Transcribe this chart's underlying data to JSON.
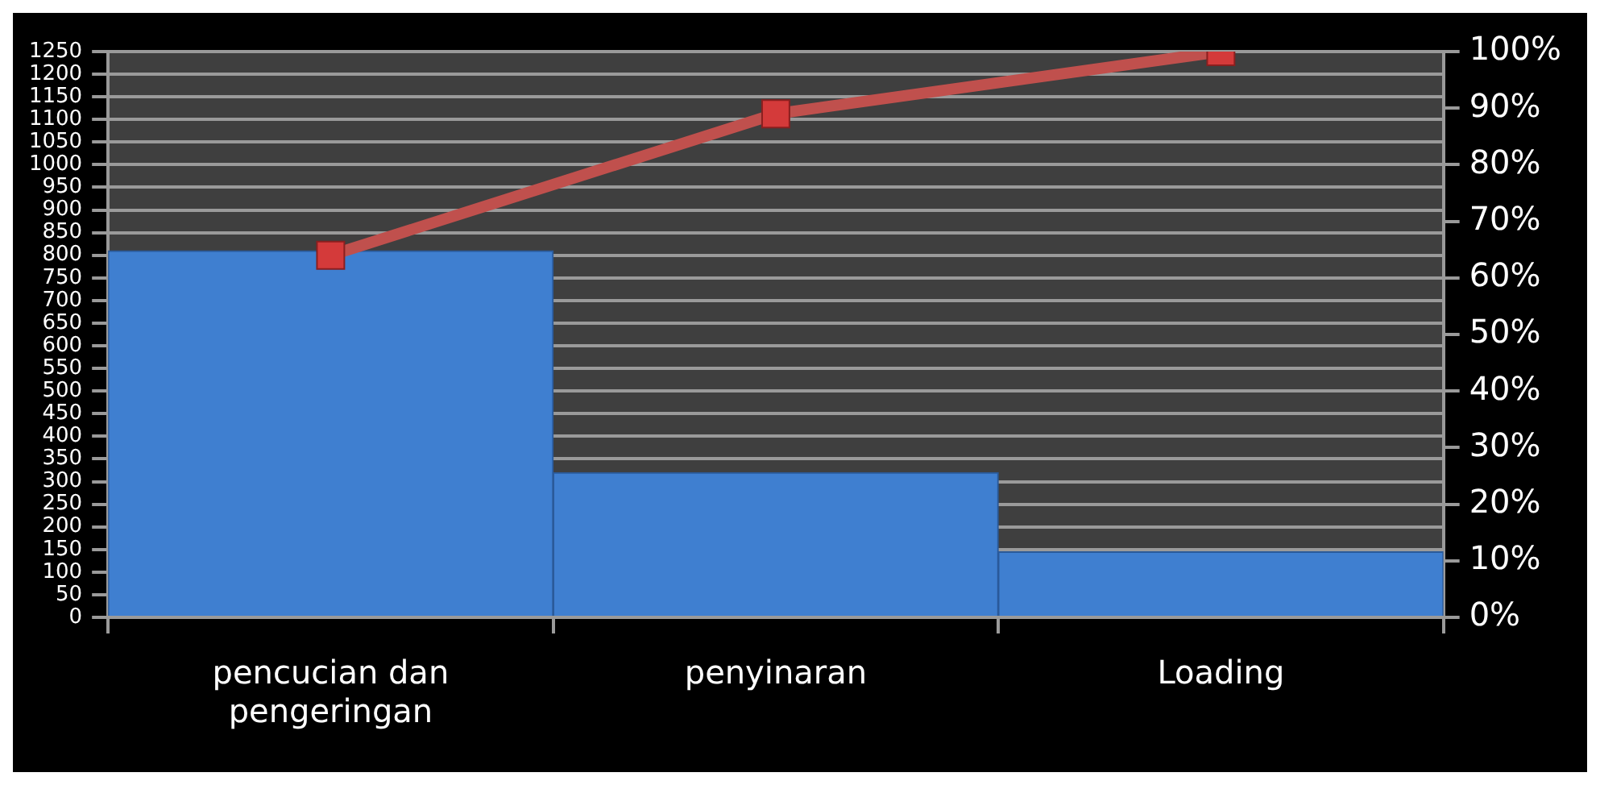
{
  "chart_data": {
    "type": "bar",
    "categories": [
      "pencucian dan pengeringan",
      "penyinaran",
      "Loading"
    ],
    "series": [
      {
        "color": "#3f7fd0",
        "values": [
          810,
          320,
          145
        ]
      },
      {
        "type": "line",
        "axis": "y2",
        "color": "#c0504d",
        "values": [
          64,
          89,
          100
        ]
      }
    ],
    "ylim": [
      0,
      1250
    ],
    "yticks": [
      0,
      50,
      100,
      150,
      200,
      250,
      300,
      350,
      400,
      450,
      500,
      550,
      600,
      650,
      700,
      750,
      800,
      850,
      900,
      950,
      1000,
      1050,
      1100,
      1150,
      1200,
      1250
    ],
    "y2lim": [
      0,
      100
    ],
    "y2ticks": [
      {
        "value": 0,
        "label": "0%"
      },
      {
        "value": 10,
        "label": "10%"
      },
      {
        "value": 20,
        "label": "20%"
      },
      {
        "value": 30,
        "label": "30%"
      },
      {
        "value": 40,
        "label": "40%"
      },
      {
        "value": 50,
        "label": "50%"
      },
      {
        "value": 60,
        "label": "60%"
      },
      {
        "value": 70,
        "label": "70%"
      },
      {
        "value": 80,
        "label": "80%"
      },
      {
        "value": 90,
        "label": "90%"
      },
      {
        "value": 100,
        "label": "100%"
      }
    ],
    "grid": "y",
    "marker": "square",
    "line_style": "solid",
    "legend": false
  }
}
